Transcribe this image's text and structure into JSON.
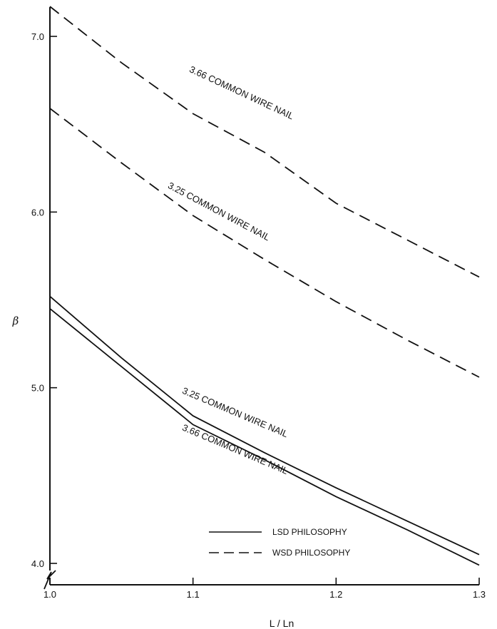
{
  "chart_data": {
    "type": "line",
    "title": "",
    "xlabel": "L / Ln",
    "ylabel": "β",
    "xlim": [
      1.0,
      1.3
    ],
    "ylim": [
      4.0,
      7.2
    ],
    "y_axis_break": true,
    "x_ticks": [
      1.0,
      1.1,
      1.2,
      1.3
    ],
    "x_tick_labels": [
      "1.0",
      "1.1",
      "1.2",
      "1.3"
    ],
    "y_ticks": [
      4.0,
      5.0,
      6.0,
      7.0
    ],
    "y_tick_labels": [
      "4.0",
      "5.0",
      "6.0",
      "7.0"
    ],
    "grid": false,
    "legend": {
      "placement": "bottom-right",
      "entries": [
        {
          "label": "LSD PHILOSOPHY",
          "style": "solid"
        },
        {
          "label": "WSD PHILOSOPHY",
          "style": "dashed"
        }
      ]
    },
    "series": [
      {
        "label": "3.66 COMMON WIRE NAIL",
        "philosophy": "WSD",
        "style": "dashed",
        "x": [
          1.0,
          1.05,
          1.1,
          1.15,
          1.2,
          1.25,
          1.3
        ],
        "y": [
          7.17,
          6.85,
          6.56,
          6.34,
          6.05,
          5.84,
          5.63
        ]
      },
      {
        "label": "3.25 COMMON WIRE NAIL",
        "philosophy": "WSD",
        "style": "dashed",
        "x": [
          1.0,
          1.05,
          1.1,
          1.15,
          1.2,
          1.25,
          1.3
        ],
        "y": [
          6.59,
          6.28,
          5.98,
          5.73,
          5.49,
          5.27,
          5.06
        ]
      },
      {
        "label": "3.25 COMMON WIRE NAIL",
        "philosophy": "LSD",
        "style": "solid",
        "x": [
          1.0,
          1.05,
          1.1,
          1.15,
          1.2,
          1.25,
          1.3
        ],
        "y": [
          5.52,
          5.17,
          4.84,
          4.63,
          4.43,
          4.24,
          4.05
        ]
      },
      {
        "label": "3.66 COMMON WIRE NAIL",
        "philosophy": "LSD",
        "style": "solid",
        "x": [
          1.0,
          1.05,
          1.1,
          1.15,
          1.2,
          1.25,
          1.3
        ],
        "y": [
          5.45,
          5.12,
          4.79,
          4.59,
          4.38,
          4.19,
          3.99
        ]
      }
    ]
  }
}
